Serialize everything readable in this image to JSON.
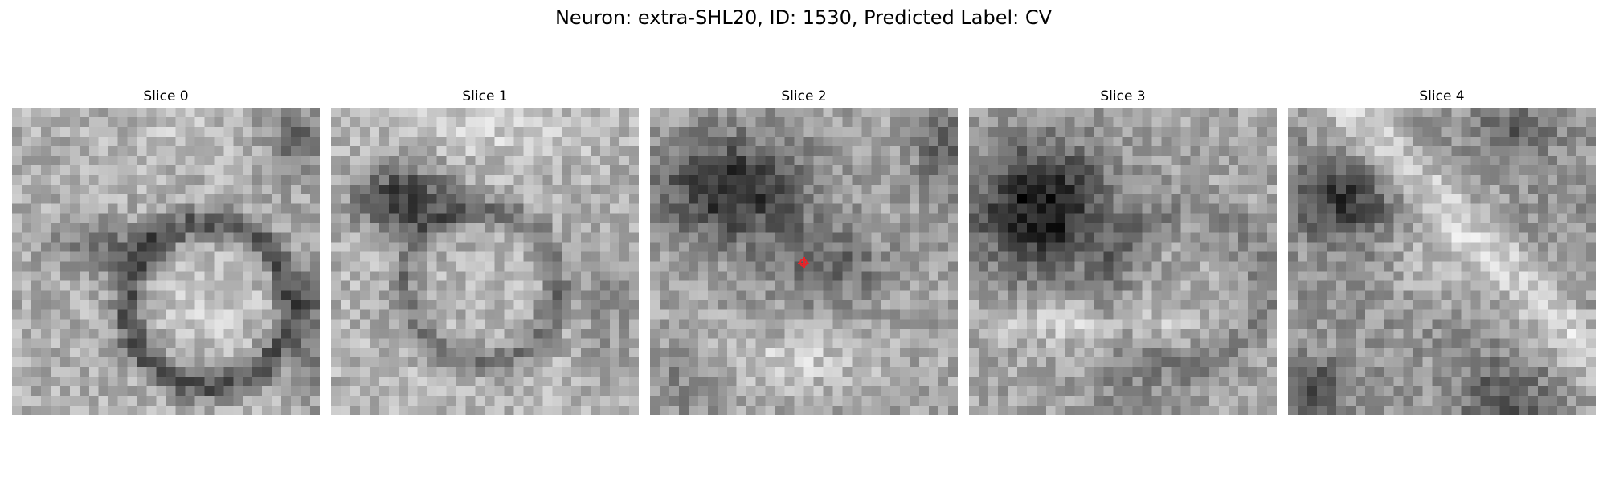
{
  "figure": {
    "title": "Neuron: extra-SHL20, ID: 1530, Predicted Label: CV"
  },
  "slices": [
    {
      "label": "Slice 0",
      "pattern": "two-adjacent-vesicles"
    },
    {
      "label": "Slice 1",
      "pattern": "dark-blob-over-ring"
    },
    {
      "label": "Slice 2",
      "pattern": "dark-region-with-marker",
      "has_marker": true
    },
    {
      "label": "Slice 3",
      "pattern": "large-dark-blob"
    },
    {
      "label": "Slice 4",
      "pattern": "diagonal-bright-band"
    }
  ],
  "colors": {
    "marker": "#e8232a",
    "colormap": "grayscale"
  }
}
